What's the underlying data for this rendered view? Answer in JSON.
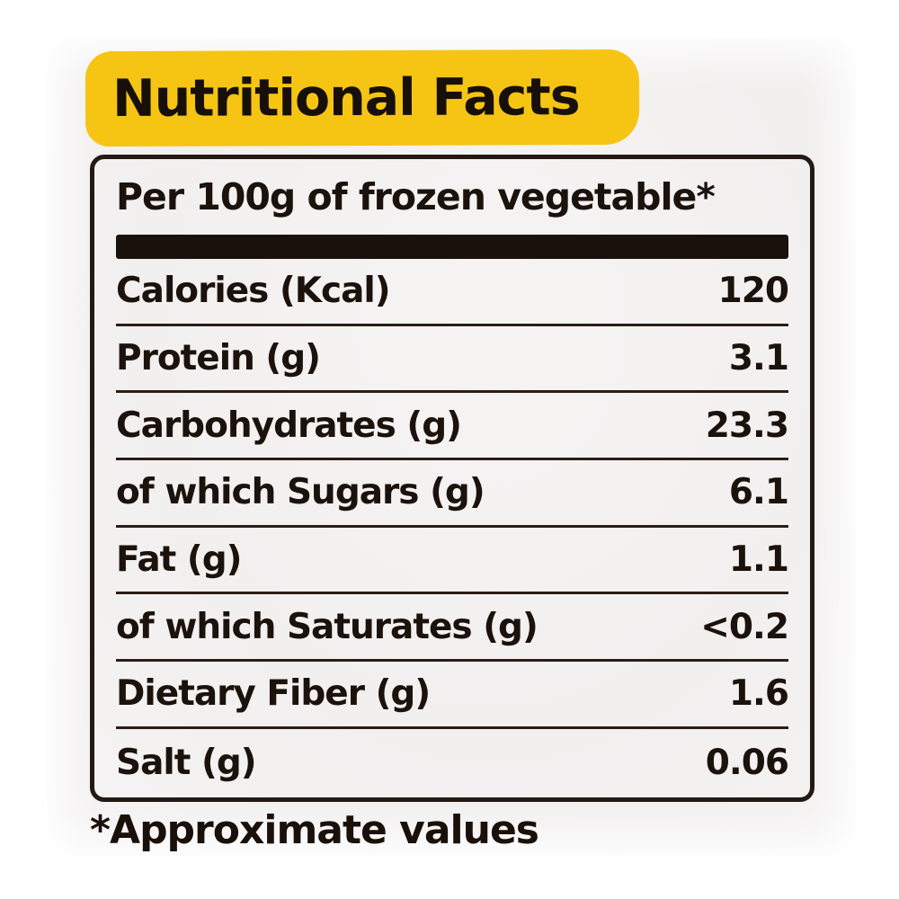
{
  "title": "Nutritional Facts",
  "table": {
    "header": "Per 100g of frozen vegetable*",
    "rows": [
      {
        "label": "Calories (Kcal)",
        "value": "120"
      },
      {
        "label": "Protein (g)",
        "value": "3.1"
      },
      {
        "label": "Carbohydrates (g)",
        "value": "23.3"
      },
      {
        "label": "of which Sugars (g)",
        "value": "6.1"
      },
      {
        "label": "Fat (g)",
        "value": "1.1"
      },
      {
        "label": "of which Saturates (g)",
        "value": "<0.2"
      },
      {
        "label": "Dietary Fiber (g)",
        "value": "1.6"
      },
      {
        "label": "Salt (g)",
        "value": "0.06"
      }
    ]
  },
  "footnote": "*Approximate values",
  "colors": {
    "highlight_yellow": "#F6C513",
    "ink_black": "#1C120C",
    "photo_background": "#F3F1F0"
  }
}
